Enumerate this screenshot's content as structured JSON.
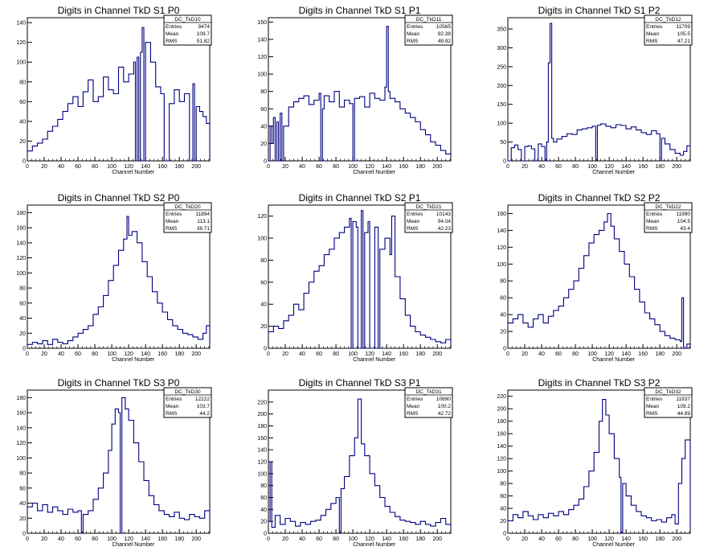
{
  "page": {
    "background": "#ffffff",
    "line_color": "#000080"
  },
  "chart_data": [
    {
      "type": "line",
      "title": "Digits in Channel TkD S1 P0",
      "xlabel": "Channel Number",
      "ylabel": "",
      "xlim": [
        0,
        216
      ],
      "ylim": [
        0,
        145
      ],
      "xticks": [
        0,
        20,
        40,
        60,
        80,
        100,
        120,
        140,
        160,
        180,
        200
      ],
      "yticks": [
        0,
        20,
        40,
        60,
        80,
        100,
        120,
        140
      ],
      "stats": {
        "name": "DC_TkD10",
        "entries": "9474",
        "mean": "109.7",
        "rms": "51.82"
      },
      "series": [
        {
          "x": [
            0,
            6,
            12,
            18,
            24,
            30,
            36,
            42,
            48,
            54,
            60,
            66,
            72,
            78,
            84,
            90,
            96,
            102,
            108,
            114,
            120,
            126,
            128,
            130,
            132,
            134,
            136,
            138,
            140,
            146,
            152,
            158,
            162,
            168,
            174,
            180,
            186,
            192,
            196,
            198,
            200,
            204,
            208,
            212,
            216
          ],
          "y": [
            10,
            15,
            18,
            22,
            30,
            35,
            42,
            50,
            58,
            65,
            55,
            70,
            82,
            60,
            65,
            85,
            72,
            68,
            95,
            80,
            88,
            100,
            0,
            105,
            0,
            110,
            135,
            0,
            120,
            100,
            75,
            68,
            0,
            58,
            72,
            60,
            68,
            0,
            78,
            0,
            55,
            50,
            45,
            38,
            0
          ]
        }
      ]
    },
    {
      "type": "line",
      "title": "Digits in Channel TkD S1 P1",
      "xlabel": "Channel Number",
      "ylabel": "",
      "xlim": [
        0,
        216
      ],
      "ylim": [
        0,
        165
      ],
      "xticks": [
        0,
        20,
        40,
        60,
        80,
        100,
        120,
        140,
        160,
        180,
        200
      ],
      "yticks": [
        0,
        20,
        40,
        60,
        80,
        100,
        120,
        140,
        160
      ],
      "stats": {
        "name": "DC_TkD11",
        "entries": "10565",
        "mean": "92.38",
        "rms": "49.92"
      },
      "series": [
        {
          "x": [
            0,
            2,
            4,
            6,
            8,
            10,
            12,
            14,
            16,
            18,
            24,
            30,
            36,
            42,
            48,
            54,
            60,
            62,
            64,
            66,
            72,
            78,
            84,
            90,
            96,
            100,
            102,
            108,
            114,
            120,
            126,
            132,
            138,
            140,
            142,
            144,
            150,
            156,
            162,
            168,
            174,
            180,
            186,
            192,
            198,
            204,
            210,
            216
          ],
          "y": [
            0,
            40,
            20,
            50,
            0,
            45,
            0,
            55,
            0,
            40,
            62,
            68,
            72,
            75,
            65,
            70,
            78,
            0,
            60,
            75,
            68,
            80,
            62,
            70,
            66,
            0,
            72,
            74,
            62,
            78,
            72,
            70,
            85,
            155,
            80,
            72,
            68,
            60,
            55,
            50,
            45,
            36,
            30,
            22,
            18,
            12,
            8,
            5
          ]
        }
      ]
    },
    {
      "type": "line",
      "title": "Digits in Channel TkD S1 P2",
      "xlabel": "Channel Number",
      "ylabel": "",
      "xlim": [
        0,
        216
      ],
      "ylim": [
        0,
        380
      ],
      "xticks": [
        0,
        20,
        40,
        60,
        80,
        100,
        120,
        140,
        160,
        180,
        200
      ],
      "yticks": [
        0,
        50,
        100,
        150,
        200,
        250,
        300,
        350
      ],
      "stats": {
        "name": "DC_TkD12",
        "entries": "11709",
        "mean": "105.5",
        "rms": "47.21"
      },
      "series": [
        {
          "x": [
            0,
            4,
            8,
            12,
            16,
            20,
            24,
            28,
            32,
            36,
            40,
            44,
            46,
            48,
            50,
            52,
            54,
            58,
            64,
            70,
            76,
            82,
            88,
            94,
            100,
            104,
            106,
            110,
            116,
            122,
            128,
            134,
            140,
            146,
            152,
            158,
            164,
            170,
            176,
            180,
            182,
            186,
            192,
            198,
            204,
            208,
            212,
            216
          ],
          "y": [
            0,
            35,
            42,
            30,
            0,
            38,
            40,
            32,
            0,
            45,
            38,
            0,
            50,
            260,
            365,
            60,
            50,
            58,
            65,
            72,
            70,
            82,
            85,
            88,
            92,
            0,
            95,
            98,
            92,
            88,
            96,
            94,
            85,
            90,
            82,
            75,
            70,
            80,
            72,
            0,
            60,
            45,
            30,
            20,
            15,
            25,
            40,
            35
          ]
        }
      ]
    },
    {
      "type": "line",
      "title": "Digits in Channel TkD S2 P0",
      "xlabel": "Channel Number",
      "ylabel": "",
      "xlim": [
        0,
        216
      ],
      "ylim": [
        0,
        190
      ],
      "xticks": [
        0,
        20,
        40,
        60,
        80,
        100,
        120,
        140,
        160,
        180,
        200
      ],
      "yticks": [
        0,
        20,
        40,
        60,
        80,
        100,
        120,
        140,
        160,
        180
      ],
      "stats": {
        "name": "DC_TkD20",
        "entries": "11894",
        "mean": "113.1",
        "rms": "38.71"
      },
      "series": [
        {
          "x": [
            0,
            6,
            12,
            18,
            24,
            30,
            36,
            42,
            48,
            54,
            60,
            66,
            72,
            78,
            84,
            90,
            96,
            102,
            108,
            114,
            118,
            120,
            124,
            130,
            136,
            142,
            148,
            154,
            160,
            166,
            172,
            178,
            184,
            190,
            196,
            202,
            208,
            212,
            216
          ],
          "y": [
            5,
            8,
            6,
            10,
            5,
            12,
            8,
            6,
            10,
            15,
            20,
            25,
            30,
            45,
            55,
            70,
            90,
            110,
            130,
            145,
            175,
            150,
            155,
            140,
            115,
            95,
            75,
            60,
            48,
            38,
            30,
            25,
            20,
            18,
            15,
            12,
            20,
            30,
            10
          ]
        }
      ]
    },
    {
      "type": "line",
      "title": "Digits in Channel TkD S2 P1",
      "xlabel": "Channel Number",
      "ylabel": "",
      "xlim": [
        0,
        216
      ],
      "ylim": [
        0,
        130
      ],
      "xticks": [
        0,
        20,
        40,
        60,
        80,
        100,
        120,
        140,
        160,
        180,
        200
      ],
      "yticks": [
        0,
        20,
        40,
        60,
        80,
        100,
        120
      ],
      "stats": {
        "name": "DC_TkD21",
        "entries": "10143",
        "mean": "94.04",
        "rms": "42.23"
      },
      "series": [
        {
          "x": [
            0,
            6,
            12,
            18,
            24,
            30,
            36,
            42,
            48,
            54,
            60,
            66,
            72,
            78,
            84,
            90,
            96,
            98,
            100,
            104,
            106,
            110,
            112,
            114,
            118,
            120,
            126,
            130,
            132,
            138,
            144,
            146,
            150,
            156,
            162,
            168,
            174,
            180,
            186,
            192,
            198,
            204,
            210,
            216
          ],
          "y": [
            15,
            20,
            18,
            25,
            30,
            40,
            35,
            50,
            60,
            70,
            75,
            85,
            90,
            100,
            105,
            110,
            118,
            0,
            115,
            110,
            0,
            125,
            0,
            105,
            115,
            0,
            110,
            0,
            90,
            100,
            85,
            120,
            65,
            45,
            30,
            20,
            15,
            12,
            10,
            8,
            6,
            5,
            8,
            3
          ]
        }
      ]
    },
    {
      "type": "line",
      "title": "Digits in Channel TkD S2 P2",
      "xlabel": "Channel Number",
      "ylabel": "",
      "xlim": [
        0,
        216
      ],
      "ylim": [
        0,
        170
      ],
      "xticks": [
        0,
        20,
        40,
        60,
        80,
        100,
        120,
        140,
        160,
        180,
        200
      ],
      "yticks": [
        0,
        20,
        40,
        60,
        80,
        100,
        120,
        140,
        160
      ],
      "stats": {
        "name": "DC_TkD22",
        "entries": "11990",
        "mean": "104.5",
        "rms": "43.4"
      },
      "series": [
        {
          "x": [
            0,
            6,
            12,
            18,
            24,
            30,
            36,
            42,
            48,
            54,
            60,
            66,
            72,
            78,
            84,
            90,
            96,
            102,
            108,
            114,
            118,
            122,
            126,
            132,
            138,
            144,
            150,
            156,
            162,
            168,
            174,
            180,
            186,
            192,
            198,
            204,
            206,
            208,
            212,
            216
          ],
          "y": [
            30,
            35,
            40,
            30,
            25,
            35,
            40,
            30,
            38,
            45,
            50,
            60,
            70,
            80,
            95,
            110,
            125,
            135,
            140,
            150,
            160,
            145,
            130,
            115,
            100,
            85,
            70,
            55,
            42,
            35,
            28,
            20,
            15,
            12,
            10,
            8,
            60,
            0,
            5,
            0
          ]
        }
      ]
    },
    {
      "type": "line",
      "title": "Digits in Channel TkD S3 P0",
      "xlabel": "Channel Number",
      "ylabel": "",
      "xlim": [
        0,
        216
      ],
      "ylim": [
        0,
        190
      ],
      "xticks": [
        0,
        20,
        40,
        60,
        80,
        100,
        120,
        140,
        160,
        180,
        200
      ],
      "yticks": [
        0,
        20,
        40,
        60,
        80,
        100,
        120,
        140,
        160,
        180
      ],
      "stats": {
        "name": "DC_TkD30",
        "entries": "12222",
        "mean": "103.7",
        "rms": "44.2"
      },
      "series": [
        {
          "x": [
            0,
            6,
            12,
            18,
            24,
            30,
            36,
            42,
            48,
            54,
            60,
            64,
            66,
            72,
            78,
            84,
            90,
            96,
            100,
            104,
            108,
            110,
            112,
            116,
            120,
            126,
            132,
            138,
            144,
            150,
            156,
            162,
            168,
            174,
            180,
            186,
            192,
            198,
            204,
            210,
            216
          ],
          "y": [
            35,
            40,
            30,
            38,
            28,
            35,
            30,
            25,
            32,
            28,
            30,
            0,
            25,
            30,
            45,
            60,
            80,
            110,
            145,
            165,
            160,
            0,
            180,
            165,
            150,
            120,
            95,
            70,
            50,
            38,
            30,
            25,
            22,
            28,
            20,
            18,
            25,
            22,
            20,
            30,
            15
          ]
        }
      ]
    },
    {
      "type": "line",
      "title": "Digits in Channel TkD S3 P1",
      "xlabel": "Channel Number",
      "ylabel": "",
      "xlim": [
        0,
        216
      ],
      "ylim": [
        0,
        240
      ],
      "xticks": [
        0,
        20,
        40,
        60,
        80,
        100,
        120,
        140,
        160,
        180,
        200
      ],
      "yticks": [
        0,
        20,
        40,
        60,
        80,
        100,
        120,
        140,
        160,
        180,
        200,
        220
      ],
      "stats": {
        "name": "DC_TkD31",
        "entries": "10690",
        "mean": "100.2",
        "rms": "42.72"
      },
      "series": [
        {
          "x": [
            0,
            2,
            4,
            8,
            14,
            20,
            26,
            32,
            38,
            44,
            50,
            56,
            62,
            68,
            74,
            80,
            84,
            86,
            90,
            96,
            102,
            106,
            110,
            114,
            120,
            126,
            132,
            138,
            144,
            150,
            156,
            162,
            168,
            174,
            180,
            186,
            192,
            198,
            204,
            210,
            216
          ],
          "y": [
            20,
            120,
            10,
            30,
            15,
            25,
            20,
            12,
            18,
            15,
            20,
            22,
            30,
            40,
            50,
            60,
            0,
            75,
            95,
            130,
            160,
            225,
            150,
            130,
            100,
            80,
            60,
            45,
            35,
            28,
            22,
            20,
            18,
            15,
            20,
            15,
            12,
            18,
            25,
            15,
            10
          ]
        }
      ]
    },
    {
      "type": "line",
      "title": "Digits in Channel TkD S3 P2",
      "xlabel": "Channel Number",
      "ylabel": "",
      "xlim": [
        0,
        216
      ],
      "ylim": [
        0,
        230
      ],
      "xticks": [
        0,
        20,
        40,
        60,
        80,
        100,
        120,
        140,
        160,
        180,
        200
      ],
      "yticks": [
        0,
        20,
        40,
        60,
        80,
        100,
        120,
        140,
        160,
        180,
        200,
        220
      ],
      "stats": {
        "name": "DC_TkD32",
        "entries": "11937",
        "mean": "109.2",
        "rms": "44.89"
      },
      "series": [
        {
          "x": [
            0,
            6,
            12,
            18,
            24,
            30,
            36,
            42,
            48,
            54,
            60,
            66,
            72,
            78,
            84,
            90,
            96,
            102,
            108,
            112,
            116,
            120,
            126,
            132,
            134,
            136,
            140,
            146,
            152,
            158,
            164,
            170,
            176,
            182,
            188,
            194,
            198,
            202,
            206,
            210,
            216
          ],
          "y": [
            20,
            30,
            25,
            35,
            28,
            22,
            30,
            25,
            32,
            28,
            35,
            30,
            38,
            45,
            55,
            75,
            100,
            130,
            180,
            215,
            190,
            160,
            120,
            90,
            0,
            80,
            60,
            45,
            35,
            28,
            25,
            20,
            22,
            18,
            25,
            30,
            15,
            80,
            120,
            150,
            10
          ]
        }
      ]
    }
  ]
}
